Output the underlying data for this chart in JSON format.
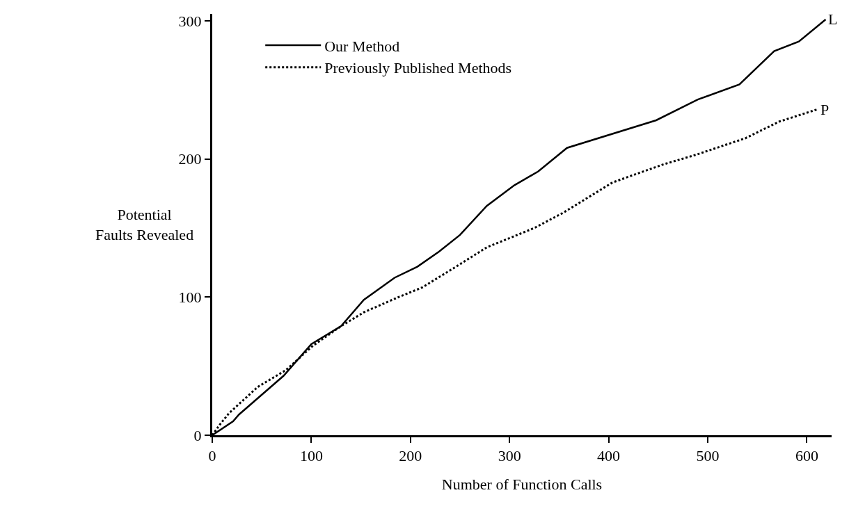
{
  "chart_data": {
    "type": "line",
    "xlabel": "Number of Function Calls",
    "ylabel": "Potential\nFaults Revealed",
    "xlim": [
      0,
      625
    ],
    "ylim": [
      0,
      305
    ],
    "xticks": [
      0,
      100,
      200,
      300,
      400,
      500,
      600
    ],
    "yticks": [
      0,
      100,
      200,
      300
    ],
    "legend": "top left",
    "marker": "none",
    "series": [
      {
        "name": "Our Method",
        "color": "#000000",
        "line_style": "solid",
        "x": [
          0,
          21,
          27,
          72,
          100,
          130,
          153,
          184,
          207,
          229,
          250,
          277,
          305,
          329,
          358,
          448,
          490,
          532,
          567,
          592,
          619
        ],
        "values": [
          0,
          10,
          15,
          43,
          66,
          79,
          98,
          114,
          122,
          133,
          145,
          166,
          181,
          191,
          208,
          228,
          243,
          254,
          278,
          285,
          301
        ]
      },
      {
        "name": "Previously Published Methods",
        "color": "#000000",
        "line_style": "dotted",
        "x": [
          0,
          8,
          17,
          46,
          74,
          102,
          130,
          153,
          188,
          212,
          246,
          277,
          325,
          354,
          404,
          455,
          488,
          538,
          572,
          611
        ],
        "values": [
          0,
          8,
          16,
          35,
          47,
          65,
          79,
          89,
          100,
          107,
          122,
          136,
          150,
          161,
          183,
          196,
          203,
          215,
          227,
          236
        ]
      }
    ],
    "annotations": [
      {
        "text": "L",
        "x": 619,
        "y": 301
      },
      {
        "text": "P",
        "x": 611,
        "y": 236
      }
    ]
  }
}
